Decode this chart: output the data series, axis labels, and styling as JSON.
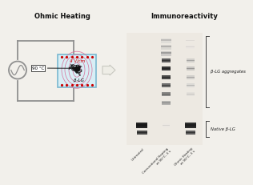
{
  "title_left": "Ohmic Heating",
  "title_right": "Immunoreactivity",
  "bg_color": "#f2f0eb",
  "cell_bg": "#d8eef5",
  "cell_border": "#7ab8d0",
  "ellipse_color": "#d878a0",
  "dot_color": "#cc0000",
  "wire_color": "#909090",
  "temp_label": "90 °C",
  "field_label": "4 V/cm",
  "protein_label": "β-LG",
  "arrow_face": "#eeede6",
  "arrow_edge": "#c8c8c0",
  "label_aggregates": "β-LG aggregates",
  "label_native": "Native β-LG",
  "lane_labels": [
    "Untreated",
    "Conventional Heating\nat 90°C, 3 s",
    "Ohmic Heating\nat 90°C, 3 s"
  ]
}
